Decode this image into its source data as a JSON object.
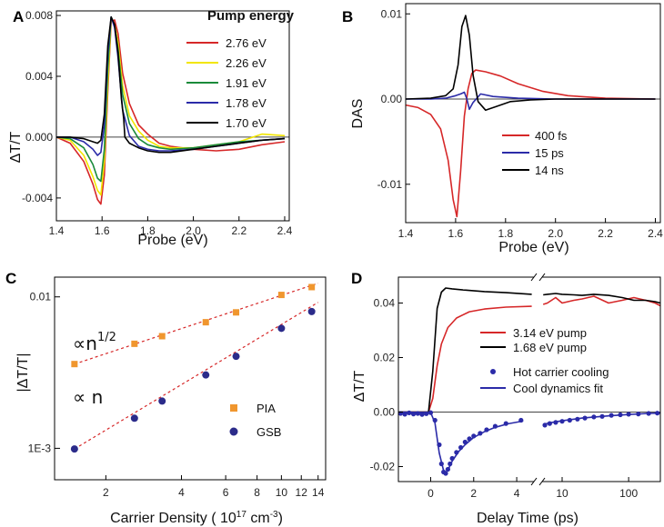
{
  "chart_data": [
    {
      "panel": "A",
      "type": "line",
      "ylabel": "ΔT/T",
      "xlabel": "Probe (eV)",
      "xlim": [
        1.4,
        2.42
      ],
      "ylim": [
        -0.0055,
        0.0083
      ],
      "xticks": [
        1.4,
        1.6,
        1.8,
        2.0,
        2.2,
        2.4
      ],
      "xtick_labels": [
        "1.4",
        "1.6",
        "1.8",
        "2.0",
        "2.2",
        "2.4"
      ],
      "yticks": [
        -0.004,
        0.0,
        0.004,
        0.008
      ],
      "ytick_labels": [
        "-0.004",
        "0.000",
        "0.004",
        "0.008"
      ],
      "legend_title": "Pump energy",
      "legend_position": "top-right",
      "series": [
        {
          "name": "2.76 eV",
          "color": "#d62728",
          "x": [
            1.4,
            1.46,
            1.52,
            1.56,
            1.58,
            1.595,
            1.61,
            1.625,
            1.64,
            1.655,
            1.67,
            1.69,
            1.72,
            1.76,
            1.8,
            1.85,
            1.9,
            2.0,
            2.1,
            2.2,
            2.3,
            2.4
          ],
          "y": [
            0.0,
            -0.0004,
            -0.0016,
            -0.0031,
            -0.0041,
            -0.0044,
            -0.0025,
            0.003,
            0.0076,
            0.0077,
            0.0068,
            0.0042,
            0.0022,
            0.0008,
            0.0002,
            -0.0004,
            -0.0006,
            -0.0008,
            -0.0009,
            -0.0008,
            -0.0005,
            -0.0003
          ]
        },
        {
          "name": "2.26 eV",
          "color": "#f2e600",
          "x": [
            1.4,
            1.46,
            1.52,
            1.56,
            1.58,
            1.595,
            1.61,
            1.625,
            1.64,
            1.655,
            1.67,
            1.69,
            1.72,
            1.76,
            1.8,
            1.85,
            1.9,
            2.0,
            2.1,
            2.2,
            2.3,
            2.4
          ],
          "y": [
            0.0,
            -0.0002,
            -0.0012,
            -0.0026,
            -0.0035,
            -0.0038,
            -0.0016,
            0.0035,
            0.0078,
            0.0074,
            0.0062,
            0.0034,
            0.0014,
            0.0004,
            -0.0002,
            -0.0006,
            -0.0007,
            -0.0007,
            -0.0005,
            -0.0003,
            0.0002,
            0.0001
          ]
        },
        {
          "name": "1.91 eV",
          "color": "#1a8a3a",
          "x": [
            1.4,
            1.46,
            1.52,
            1.56,
            1.58,
            1.595,
            1.61,
            1.625,
            1.64,
            1.655,
            1.67,
            1.69,
            1.72,
            1.76,
            1.8,
            1.85,
            1.9,
            2.0,
            2.1,
            2.2,
            2.3,
            2.4
          ],
          "y": [
            0.0,
            -0.0001,
            -0.0007,
            -0.0018,
            -0.0027,
            -0.0029,
            -0.0008,
            0.0045,
            0.0079,
            0.0073,
            0.0058,
            0.0028,
            0.0009,
            -0.0001,
            -0.0005,
            -0.0007,
            -0.0008,
            -0.0007,
            -0.0005,
            -0.0003,
            -0.0002,
            -0.0001
          ]
        },
        {
          "name": "1.78 eV",
          "color": "#2b2ba8",
          "x": [
            1.4,
            1.46,
            1.52,
            1.56,
            1.58,
            1.595,
            1.61,
            1.625,
            1.64,
            1.655,
            1.67,
            1.69,
            1.72,
            1.76,
            1.8,
            1.85,
            1.9,
            2.0,
            2.1,
            2.2,
            2.3,
            2.4
          ],
          "y": [
            0.0,
            0.0,
            -0.0003,
            -0.0008,
            -0.0012,
            -0.001,
            0.0008,
            0.0055,
            0.0079,
            0.0072,
            0.0052,
            0.0018,
            0.0001,
            -0.0006,
            -0.0008,
            -0.0009,
            -0.0009,
            -0.0008,
            -0.0006,
            -0.0004,
            -0.0002,
            -0.0001
          ]
        },
        {
          "name": "1.70 eV",
          "color": "#000000",
          "x": [
            1.4,
            1.46,
            1.52,
            1.56,
            1.58,
            1.595,
            1.61,
            1.625,
            1.64,
            1.655,
            1.67,
            1.685,
            1.695,
            1.7,
            1.72,
            1.76,
            1.8,
            1.85,
            1.9,
            2.0,
            2.1,
            2.2,
            2.3,
            2.4
          ],
          "y": [
            0.0,
            0.0,
            -0.0001,
            -0.0003,
            -0.0004,
            -0.0002,
            0.0015,
            0.006,
            0.0079,
            0.0074,
            0.0055,
            0.0025,
            0.0012,
            0.0,
            -0.0004,
            -0.0007,
            -0.0009,
            -0.001,
            -0.001,
            -0.0008,
            -0.0006,
            -0.0004,
            -0.0002,
            -0.0001
          ]
        }
      ]
    },
    {
      "panel": "B",
      "type": "line",
      "ylabel": "DAS",
      "xlabel": "Probe (eV)",
      "xlim": [
        1.4,
        2.42
      ],
      "ylim": [
        -0.0145,
        0.0112
      ],
      "xticks": [
        1.4,
        1.6,
        1.8,
        2.0,
        2.2,
        2.4
      ],
      "xtick_labels": [
        "1.4",
        "1.6",
        "1.8",
        "2.0",
        "2.2",
        "2.4"
      ],
      "yticks": [
        -0.01,
        0.0,
        0.01
      ],
      "ytick_labels": [
        "-0.01",
        "0.00",
        "0.01"
      ],
      "legend_position": "bottom-right",
      "series": [
        {
          "name": "400 fs",
          "color": "#d62728",
          "x": [
            1.4,
            1.45,
            1.5,
            1.54,
            1.57,
            1.59,
            1.605,
            1.62,
            1.635,
            1.65,
            1.665,
            1.68,
            1.72,
            1.78,
            1.85,
            1.95,
            2.05,
            2.2,
            2.4
          ],
          "y": [
            -0.0007,
            -0.001,
            -0.0018,
            -0.0035,
            -0.0072,
            -0.0118,
            -0.0138,
            -0.0085,
            -0.002,
            0.0012,
            0.003,
            0.0034,
            0.0032,
            0.0027,
            0.0018,
            0.0009,
            0.0004,
            0.0001,
            0.0
          ]
        },
        {
          "name": "15 ps",
          "color": "#2b2ba8",
          "x": [
            1.4,
            1.5,
            1.56,
            1.6,
            1.62,
            1.635,
            1.645,
            1.655,
            1.67,
            1.7,
            1.75,
            1.85,
            2.0,
            2.2,
            2.4
          ],
          "y": [
            0.0,
            0.0,
            0.0001,
            0.0004,
            0.0006,
            0.0008,
            0.0,
            -0.0012,
            -0.0004,
            0.0006,
            0.0003,
            0.0001,
            0.0,
            0.0,
            0.0
          ]
        },
        {
          "name": "14 ns",
          "color": "#000000",
          "x": [
            1.4,
            1.5,
            1.56,
            1.59,
            1.61,
            1.625,
            1.64,
            1.655,
            1.67,
            1.69,
            1.72,
            1.76,
            1.82,
            1.9,
            2.0,
            2.2,
            2.4
          ],
          "y": [
            0.0,
            0.0001,
            0.0004,
            0.0012,
            0.004,
            0.0085,
            0.0098,
            0.0075,
            0.0028,
            -0.0003,
            -0.0013,
            -0.0009,
            -0.0003,
            -0.0001,
            0.0,
            0.0,
            0.0
          ]
        }
      ]
    },
    {
      "panel": "C",
      "type": "scatter",
      "log_x": true,
      "log_y": true,
      "ylabel": "|ΔT/T|",
      "xlabel": "Carrier Density ( 10¹⁷ cm⁻³)",
      "xlim": [
        1.25,
        15.0
      ],
      "ylim": [
        0.00062,
        0.0135
      ],
      "xticks": [
        2,
        4,
        6,
        8,
        10,
        12,
        14
      ],
      "xtick_labels": [
        "2",
        "4",
        "6",
        "8",
        "10",
        "12",
        "14"
      ],
      "yticks": [
        0.001,
        0.01
      ],
      "ytick_labels": [
        "1E-3",
        "0.01"
      ],
      "annotations": [
        "∝n",
        "1/2",
        "∝ n"
      ],
      "series": [
        {
          "name": "PIA",
          "color": "#f0962e",
          "marker": "square",
          "x": [
            1.5,
            2.6,
            3.35,
            5.0,
            6.6,
            10.0,
            13.2
          ],
          "y": [
            0.0036,
            0.0049,
            0.0055,
            0.0068,
            0.0079,
            0.0103,
            0.0116
          ]
        },
        {
          "name": "GSB",
          "color": "#2b2b8a",
          "marker": "circle",
          "x": [
            1.5,
            2.6,
            3.35,
            5.0,
            6.6,
            10.0,
            13.2
          ],
          "y": [
            0.00099,
            0.00158,
            0.00205,
            0.00305,
            0.00405,
            0.0062,
            0.008
          ]
        }
      ],
      "fits": [
        {
          "of": "PIA",
          "slope": 0.5,
          "color": "#d62728",
          "style": "dashed",
          "x": [
            1.5,
            14.0
          ],
          "y": [
            0.0036,
            0.0123
          ]
        },
        {
          "of": "GSB",
          "slope": 1.0,
          "color": "#d62728",
          "style": "dashed",
          "x": [
            1.5,
            14.0
          ],
          "y": [
            0.00099,
            0.0092
          ]
        }
      ]
    },
    {
      "panel": "D",
      "type": "line",
      "ylabel": "ΔT/T",
      "xlabel": "Delay Time (ps)",
      "x_axis": "linear from -1.5 to 4.8 ps, broken, then log from 5 to 300 ps",
      "ylim": [
        -0.0255,
        0.0495
      ],
      "xticks": [
        0,
        2,
        4,
        10,
        100
      ],
      "xtick_labels": [
        "0",
        "2",
        "4",
        "10",
        "100"
      ],
      "yticks": [
        -0.02,
        0.0,
        0.02,
        0.04
      ],
      "ytick_labels": [
        "-0.02",
        "0.00",
        "0.02",
        "0.04"
      ],
      "legend_position": "right-middle",
      "series": [
        {
          "name": "3.14 eV pump",
          "color": "#d62728",
          "x": [
            -1.5,
            -0.1,
            0.1,
            0.3,
            0.5,
            0.8,
            1.2,
            1.8,
            2.5,
            3.5,
            4.7,
            5.2,
            6.0,
            8.0,
            10.0,
            15.0,
            20.0,
            30.0,
            50.0,
            80.0,
            120.0,
            180.0,
            250.0,
            300.0
          ],
          "y": [
            0.0,
            0.0,
            0.005,
            0.017,
            0.025,
            0.031,
            0.0345,
            0.0368,
            0.0378,
            0.0385,
            0.0388,
            0.0395,
            0.04,
            0.042,
            0.04,
            0.041,
            0.0415,
            0.0425,
            0.04,
            0.041,
            0.042,
            0.041,
            0.04,
            0.039
          ]
        },
        {
          "name": "1.68 eV pump",
          "color": "#000000",
          "x": [
            -1.5,
            -0.1,
            0.1,
            0.3,
            0.5,
            0.7,
            1.0,
            1.5,
            2.5,
            3.5,
            4.7,
            5.2,
            6.0,
            8.0,
            10.0,
            15.0,
            20.0,
            30.0,
            50.0,
            80.0,
            120.0,
            180.0,
            250.0,
            300.0
          ],
          "y": [
            0.0,
            0.0,
            0.015,
            0.038,
            0.044,
            0.0455,
            0.0452,
            0.0448,
            0.0442,
            0.0438,
            0.0432,
            0.043,
            0.0432,
            0.0435,
            0.0432,
            0.043,
            0.0428,
            0.0432,
            0.0428,
            0.042,
            0.041,
            0.041,
            0.0405,
            0.04
          ]
        },
        {
          "name": "Hot carrier cooling",
          "color": "#2b2ba8",
          "marker": "circle",
          "x": [
            -1.4,
            -1.2,
            -1.0,
            -0.8,
            -0.6,
            -0.4,
            -0.2,
            0.0,
            0.2,
            0.4,
            0.5,
            0.6,
            0.7,
            0.8,
            0.9,
            1.0,
            1.2,
            1.4,
            1.6,
            1.8,
            2.0,
            2.3,
            2.6,
            3.0,
            3.5,
            4.2,
            5.5,
            6.5,
            8.0,
            10.0,
            13.0,
            17.0,
            22.0,
            30.0,
            40.0,
            55.0,
            75.0,
            100.0,
            140.0,
            200.0,
            270.0
          ],
          "y": [
            -0.0005,
            -0.0008,
            -0.0003,
            -0.0007,
            -0.0005,
            -0.0009,
            -0.0006,
            -0.0002,
            -0.003,
            -0.012,
            -0.019,
            -0.022,
            -0.0225,
            -0.021,
            -0.019,
            -0.017,
            -0.0148,
            -0.013,
            -0.011,
            -0.0098,
            -0.0088,
            -0.0078,
            -0.0065,
            -0.0052,
            -0.0042,
            -0.003,
            -0.0048,
            -0.0042,
            -0.0038,
            -0.0034,
            -0.003,
            -0.0026,
            -0.0022,
            -0.0018,
            -0.0016,
            -0.0012,
            -0.001,
            -0.0008,
            -0.0007,
            -0.0005,
            -0.0004
          ]
        },
        {
          "name": "Cool dynamics fit",
          "color": "#2b2ba8",
          "x": [
            -1.5,
            0.0,
            0.2,
            0.4,
            0.6,
            0.7,
            0.85,
            1.0,
            1.3,
            1.6,
            2.0,
            2.5,
            3.0,
            3.6,
            4.3,
            5.2,
            7.0,
            10.0,
            20.0,
            50.0,
            100.0,
            200.0,
            300.0
          ],
          "y": [
            0.0,
            -0.0002,
            -0.004,
            -0.015,
            -0.0215,
            -0.0225,
            -0.0205,
            -0.018,
            -0.0145,
            -0.012,
            -0.0093,
            -0.0072,
            -0.0056,
            -0.0043,
            -0.0033,
            -0.0045,
            -0.0038,
            -0.0032,
            -0.0022,
            -0.0014,
            -0.0009,
            -0.0005,
            -0.0004
          ]
        }
      ]
    }
  ]
}
